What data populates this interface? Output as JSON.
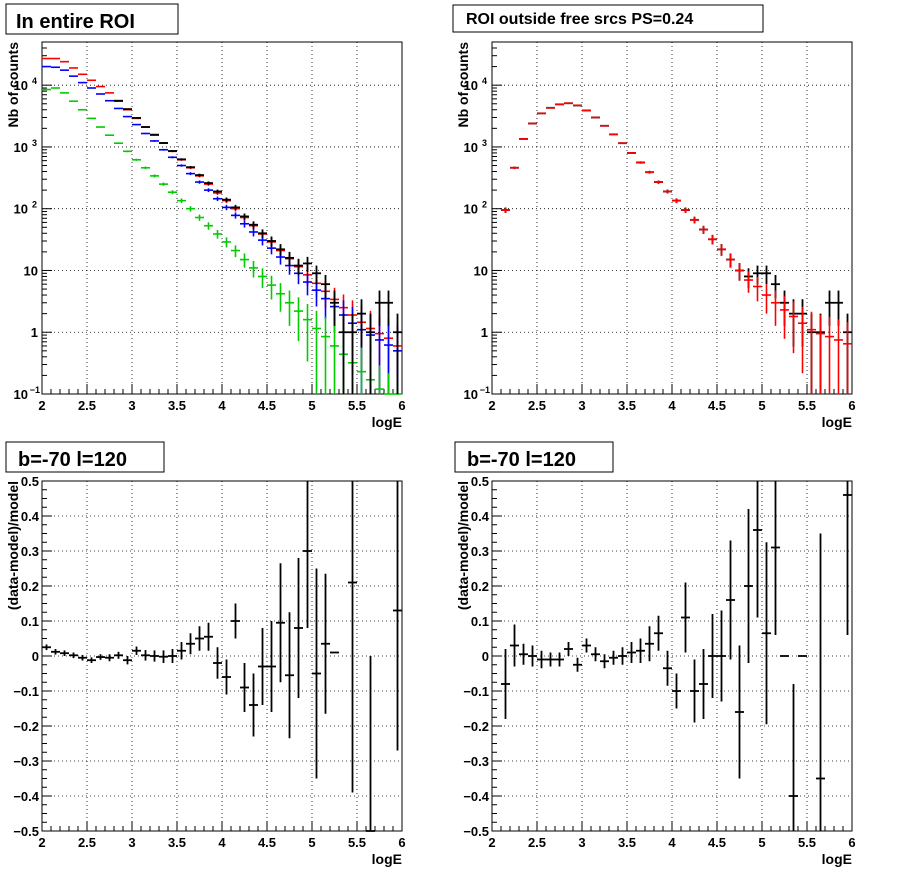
{
  "chart_data": [
    {
      "type": "scatter",
      "title": "In entire ROI",
      "xlabel": "logE",
      "ylabel": "Nb of counts",
      "xlim": [
        2,
        6
      ],
      "ylim": [
        0.1,
        50000
      ],
      "yscale": "log",
      "grid": true,
      "x_ticks": [
        "2",
        "2.5",
        "3",
        "3.5",
        "4",
        "4.5",
        "5",
        "5.5",
        "6"
      ],
      "y_ticks": [
        {
          "value": 0.1,
          "label": "10",
          "sup": "−1"
        },
        {
          "value": 1,
          "label": "1",
          "sup": ""
        },
        {
          "value": 10,
          "label": "10",
          "sup": ""
        },
        {
          "value": 100,
          "label": "10",
          "sup": "2"
        },
        {
          "value": 1000,
          "label": "10",
          "sup": "3"
        },
        {
          "value": 10000,
          "label": "10",
          "sup": "4"
        }
      ],
      "series": [
        {
          "color": "#ff0000",
          "style": "error",
          "x": [
            2.05,
            2.15,
            2.25,
            2.35,
            2.45,
            2.55,
            2.65,
            2.75,
            2.85,
            2.95,
            3.05,
            3.15,
            3.25,
            3.35,
            3.45,
            3.55,
            3.65,
            3.75,
            3.85,
            3.95,
            4.05,
            4.15,
            4.25,
            4.35,
            4.45,
            4.55,
            4.65,
            4.75,
            4.85,
            4.95,
            5.05,
            5.15,
            5.25,
            5.35,
            5.45,
            5.55,
            5.65,
            5.75,
            5.85,
            5.95
          ],
          "y": [
            27000,
            27000,
            24000,
            19000,
            15000,
            12000,
            9500,
            7500,
            5500,
            4000,
            2900,
            2100,
            1550,
            1150,
            850,
            620,
            460,
            340,
            250,
            180,
            135,
            100,
            72,
            53,
            39,
            29,
            21,
            15.5,
            11.5,
            8.5,
            6.2,
            4.6,
            3.4,
            2.5,
            1.9,
            1.45,
            1.15,
            0.95,
            0.8,
            0.6
          ]
        },
        {
          "color": "#0000ff",
          "style": "error",
          "x": [
            2.05,
            2.15,
            2.25,
            2.35,
            2.45,
            2.55,
            2.65,
            2.75,
            2.85,
            2.95,
            3.05,
            3.15,
            3.25,
            3.35,
            3.45,
            3.55,
            3.65,
            3.75,
            3.85,
            3.95,
            4.05,
            4.15,
            4.25,
            4.35,
            4.45,
            4.55,
            4.65,
            4.75,
            4.85,
            4.95,
            5.05,
            5.15,
            5.25,
            5.35,
            5.45,
            5.55,
            5.65,
            5.75,
            5.85,
            5.95
          ],
          "y": [
            20000,
            19500,
            17500,
            14000,
            11000,
            9000,
            7200,
            5600,
            4200,
            3100,
            2300,
            1650,
            1250,
            900,
            680,
            500,
            370,
            270,
            200,
            145,
            105,
            78,
            57,
            42,
            31,
            23,
            16.5,
            12,
            9,
            6.5,
            4.8,
            3.5,
            2.6,
            1.9,
            1.4,
            1.1,
            0.9,
            0.75,
            0.62,
            0.5
          ]
        },
        {
          "color": "#00cc00",
          "style": "error",
          "x": [
            2.05,
            2.15,
            2.25,
            2.35,
            2.45,
            2.55,
            2.65,
            2.75,
            2.85,
            2.95,
            3.05,
            3.15,
            3.25,
            3.35,
            3.45,
            3.55,
            3.65,
            3.75,
            3.85,
            3.95,
            4.05,
            4.15,
            4.25,
            4.35,
            4.45,
            4.55,
            4.65,
            4.75,
            4.85,
            4.95,
            5.05,
            5.15,
            5.25,
            5.35,
            5.45,
            5.55,
            5.65,
            5.75,
            5.85,
            5.95
          ],
          "y": [
            8500,
            9000,
            7500,
            5500,
            4000,
            2900,
            2100,
            1550,
            1150,
            850,
            620,
            460,
            340,
            250,
            185,
            135,
            100,
            72,
            53,
            39,
            29,
            21,
            15,
            11,
            8,
            5.8,
            4.2,
            3,
            2.2,
            1.6,
            1.15,
            0.85,
            0.6,
            0.44,
            0.32,
            0.23,
            0.17,
            0.12,
            0.09,
            0.065
          ]
        },
        {
          "color": "#000000",
          "style": "cross",
          "x": [
            2.85,
            2.95,
            3.05,
            3.15,
            3.25,
            3.35,
            3.45,
            3.55,
            3.65,
            3.75,
            3.85,
            3.95,
            4.05,
            4.15,
            4.25,
            4.35,
            4.45,
            4.55,
            4.65,
            4.75,
            4.85,
            4.95,
            5.05,
            5.15,
            5.25,
            5.35,
            5.45,
            5.55,
            5.65,
            5.75,
            5.85,
            5.95
          ],
          "y": [
            5600,
            4100,
            2950,
            2100,
            1580,
            1160,
            860,
            630,
            470,
            350,
            260,
            190,
            140,
            105,
            75,
            55,
            40,
            30,
            22,
            16,
            12,
            13,
            9,
            6,
            3,
            1,
            1,
            2,
            1,
            3,
            3,
            1
          ]
        }
      ]
    },
    {
      "type": "scatter",
      "title": "ROI outside free srcs PS=0.24",
      "xlabel": "logE",
      "ylabel": "Nb of counts",
      "xlim": [
        2,
        6
      ],
      "ylim": [
        0.1,
        50000
      ],
      "yscale": "log",
      "grid": true,
      "x_ticks": [
        "2",
        "2.5",
        "3",
        "3.5",
        "4",
        "4.5",
        "5",
        "5.5",
        "6"
      ],
      "y_ticks": [
        {
          "value": 0.1,
          "label": "10",
          "sup": "−1"
        },
        {
          "value": 1,
          "label": "1",
          "sup": ""
        },
        {
          "value": 10,
          "label": "10",
          "sup": ""
        },
        {
          "value": 100,
          "label": "10",
          "sup": "2"
        },
        {
          "value": 1000,
          "label": "10",
          "sup": "3"
        },
        {
          "value": 10000,
          "label": "10",
          "sup": "4"
        }
      ],
      "series": [
        {
          "color": "#000000",
          "style": "cross",
          "x": [
            2.15,
            2.25,
            2.35,
            2.45,
            2.55,
            2.65,
            2.75,
            2.85,
            2.95,
            3.05,
            3.15,
            3.25,
            3.35,
            3.45,
            3.55,
            3.65,
            3.75,
            3.85,
            3.95,
            4.05,
            4.15,
            4.25,
            4.35,
            4.45,
            4.55,
            4.65,
            4.75,
            4.85,
            4.95,
            5.05,
            5.15,
            5.25,
            5.35,
            5.45,
            5.55,
            5.65,
            5.75,
            5.85,
            5.95
          ],
          "y": [
            95,
            460,
            1350,
            2400,
            3500,
            4300,
            4900,
            5100,
            4700,
            3900,
            3000,
            2200,
            1600,
            1150,
            800,
            560,
            390,
            270,
            190,
            135,
            95,
            66,
            46,
            32,
            22,
            15,
            10,
            8,
            9,
            9,
            6,
            3,
            2,
            2,
            1,
            1,
            3,
            3,
            1
          ]
        },
        {
          "color": "#ff0000",
          "style": "error",
          "x": [
            2.15,
            2.25,
            2.35,
            2.45,
            2.55,
            2.65,
            2.75,
            2.85,
            2.95,
            3.05,
            3.15,
            3.25,
            3.35,
            3.45,
            3.55,
            3.65,
            3.75,
            3.85,
            3.95,
            4.05,
            4.15,
            4.25,
            4.35,
            4.45,
            4.55,
            4.65,
            4.75,
            4.85,
            4.95,
            5.05,
            5.15,
            5.25,
            5.35,
            5.45,
            5.55,
            5.65,
            5.75,
            5.85,
            5.95
          ],
          "y": [
            95,
            460,
            1350,
            2400,
            3500,
            4300,
            4900,
            5100,
            4700,
            3900,
            3000,
            2200,
            1600,
            1150,
            800,
            560,
            390,
            270,
            190,
            135,
            95,
            66,
            46,
            32,
            22,
            15,
            10,
            7,
            5.5,
            4,
            3,
            2.3,
            1.8,
            1.4,
            1.1,
            0.95,
            0.85,
            0.75,
            0.65
          ]
        }
      ]
    },
    {
      "type": "scatter",
      "title": "b=-70 l=120",
      "xlabel": "logE",
      "ylabel": "(data-model)/model",
      "xlim": [
        2,
        6
      ],
      "ylim": [
        -0.5,
        0.5
      ],
      "grid": true,
      "x_ticks": [
        "2",
        "2.5",
        "3",
        "3.5",
        "4",
        "4.5",
        "5",
        "5.5",
        "6"
      ],
      "y_ticks": [
        "−0.5",
        "−0.4",
        "−0.3",
        "−0.2",
        "−0.1",
        "0",
        "0.1",
        "0.2",
        "0.3",
        "0.4",
        "0.5"
      ],
      "series": [
        {
          "color": "#000000",
          "style": "cross",
          "x": [
            2.05,
            2.15,
            2.25,
            2.35,
            2.45,
            2.55,
            2.65,
            2.75,
            2.85,
            2.95,
            3.05,
            3.15,
            3.25,
            3.35,
            3.45,
            3.55,
            3.65,
            3.75,
            3.85,
            3.95,
            4.05,
            4.15,
            4.25,
            4.35,
            4.45,
            4.55,
            4.65,
            4.75,
            4.85,
            4.95,
            5.05,
            5.15,
            5.25,
            5.45,
            5.65,
            5.95
          ],
          "y": [
            0.025,
            0.012,
            0.008,
            0.002,
            -0.005,
            -0.012,
            -0.003,
            -0.005,
            0.002,
            -0.012,
            0.015,
            0.002,
            0.0,
            -0.002,
            0.0,
            0.015,
            0.035,
            0.05,
            0.055,
            -0.02,
            -0.06,
            0.1,
            -0.09,
            -0.14,
            -0.03,
            -0.03,
            0.095,
            -0.055,
            0.08,
            0.3,
            -0.05,
            0.035,
            0.01,
            0.21,
            -0.5,
            0.13
          ],
          "err": [
            0.008,
            0.008,
            0.008,
            0.008,
            0.008,
            0.008,
            0.008,
            0.01,
            0.01,
            0.012,
            0.012,
            0.015,
            0.016,
            0.018,
            0.02,
            0.025,
            0.03,
            0.035,
            0.04,
            0.045,
            0.05,
            0.05,
            0.07,
            0.09,
            0.11,
            0.13,
            0.17,
            0.18,
            0.2,
            0.22,
            0.3,
            0.2,
            0.0,
            0.6,
            0.5,
            0.4
          ]
        }
      ]
    },
    {
      "type": "scatter",
      "title": "b=-70 l=120",
      "xlabel": "logE",
      "ylabel": "(data-model)/model",
      "xlim": [
        2,
        6
      ],
      "ylim": [
        -0.5,
        0.5
      ],
      "grid": true,
      "x_ticks": [
        "2",
        "2.5",
        "3",
        "3.5",
        "4",
        "4.5",
        "5",
        "5.5",
        "6"
      ],
      "y_ticks": [
        "−0.5",
        "−0.4",
        "−0.3",
        "−0.2",
        "−0.1",
        "0",
        "0.1",
        "0.2",
        "0.3",
        "0.4",
        "0.5"
      ],
      "series": [
        {
          "color": "#000000",
          "style": "cross",
          "x": [
            2.15,
            2.25,
            2.35,
            2.45,
            2.55,
            2.65,
            2.75,
            2.85,
            2.95,
            3.05,
            3.15,
            3.25,
            3.35,
            3.45,
            3.55,
            3.65,
            3.75,
            3.85,
            3.95,
            4.05,
            4.15,
            4.25,
            4.35,
            4.45,
            4.55,
            4.65,
            4.75,
            4.85,
            4.95,
            5.05,
            5.15,
            5.25,
            5.35,
            5.45,
            5.65,
            5.95
          ],
          "y": [
            -0.08,
            0.03,
            0.005,
            0.0,
            -0.01,
            -0.01,
            -0.01,
            0.02,
            -0.025,
            0.03,
            0.005,
            -0.015,
            -0.005,
            0.0,
            0.01,
            0.015,
            0.035,
            0.065,
            -0.035,
            -0.1,
            0.11,
            -0.1,
            -0.08,
            0.0,
            0.0,
            0.16,
            -0.16,
            0.2,
            0.36,
            0.065,
            0.31,
            0.0,
            -0.4,
            0.0,
            -0.35,
            0.46
          ],
          "err": [
            0.1,
            0.06,
            0.03,
            0.03,
            0.025,
            0.02,
            0.02,
            0.02,
            0.02,
            0.02,
            0.02,
            0.02,
            0.02,
            0.025,
            0.03,
            0.035,
            0.05,
            0.05,
            0.05,
            0.05,
            0.1,
            0.09,
            0.1,
            0.12,
            0.13,
            0.17,
            0.19,
            0.22,
            0.25,
            0.26,
            0.25,
            0.0,
            0.32,
            0.0,
            0.7,
            0.4
          ]
        }
      ]
    }
  ]
}
